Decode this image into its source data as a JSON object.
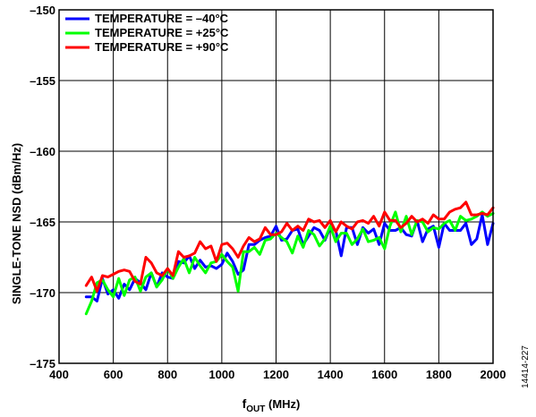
{
  "chart_data": {
    "type": "line",
    "xlabel_main": "f",
    "xlabel_sub": "OUT",
    "xlabel_unit": " (MHz)",
    "ylabel": "SINGLE-TONE NSD (dBm/Hz)",
    "xlim": [
      400,
      2000
    ],
    "ylim": [
      -175,
      -150
    ],
    "xticks": [
      400,
      600,
      800,
      1000,
      1200,
      1400,
      1600,
      1800,
      2000
    ],
    "yticks": [
      -150,
      -155,
      -160,
      -165,
      -170,
      -175
    ],
    "ytick_labels": [
      "–150",
      "–155",
      "–160",
      "–165",
      "–170",
      "–175"
    ],
    "grid": true,
    "legend_position": "top-left",
    "figure_id": "14414-227",
    "x": [
      500,
      520,
      540,
      560,
      580,
      600,
      620,
      640,
      660,
      680,
      700,
      720,
      740,
      760,
      780,
      800,
      820,
      840,
      860,
      880,
      900,
      920,
      940,
      960,
      980,
      1000,
      1020,
      1040,
      1060,
      1080,
      1100,
      1120,
      1140,
      1160,
      1180,
      1200,
      1220,
      1240,
      1260,
      1280,
      1300,
      1320,
      1340,
      1360,
      1380,
      1400,
      1420,
      1440,
      1460,
      1480,
      1500,
      1520,
      1540,
      1560,
      1580,
      1600,
      1620,
      1640,
      1660,
      1680,
      1700,
      1720,
      1740,
      1760,
      1780,
      1800,
      1820,
      1840,
      1860,
      1880,
      1900,
      1920,
      1940,
      1960,
      1980,
      2000
    ],
    "series": [
      {
        "name": "TEMPERATURE = –40°C",
        "color": "#0000ff",
        "values": [
          -170.3,
          -170.3,
          -170.6,
          -169.0,
          -170.1,
          -169.8,
          -170.4,
          -169.4,
          -169.8,
          -169.0,
          -169.3,
          -169.8,
          -168.6,
          -169.6,
          -168.6,
          -168.9,
          -169.0,
          -167.8,
          -167.9,
          -167.4,
          -168.3,
          -167.7,
          -168.2,
          -168.1,
          -168.3,
          -168.0,
          -167.2,
          -167.8,
          -168.7,
          -168.4,
          -166.6,
          -166.6,
          -166.3,
          -166.1,
          -166.0,
          -165.3,
          -166.3,
          -166.2,
          -165.6,
          -165.5,
          -166.6,
          -166.0,
          -165.4,
          -165.6,
          -166.3,
          -165.4,
          -165.6,
          -167.4,
          -165.4,
          -165.4,
          -166.6,
          -165.4,
          -165.8,
          -165.5,
          -166.6,
          -165.1,
          -165.6,
          -165.6,
          -165.4,
          -165.9,
          -166.0,
          -164.9,
          -166.4,
          -165.5,
          -165.3,
          -166.8,
          -165.1,
          -165.6,
          -165.6,
          -165.6,
          -165.1,
          -166.6,
          -166.2,
          -164.5,
          -166.6,
          -165.1
        ]
      },
      {
        "name": "TEMPERATURE = +25°C",
        "color": "#00ff00",
        "values": [
          -171.5,
          -170.6,
          -169.3,
          -169.1,
          -169.8,
          -170.3,
          -169.0,
          -170.2,
          -169.1,
          -168.9,
          -169.9,
          -168.9,
          -168.6,
          -169.6,
          -169.1,
          -168.3,
          -169.0,
          -168.2,
          -167.6,
          -168.6,
          -167.5,
          -168.1,
          -168.6,
          -167.9,
          -167.8,
          -167.3,
          -167.8,
          -168.2,
          -169.9,
          -167.1,
          -167.1,
          -166.8,
          -167.3,
          -166.3,
          -166.2,
          -165.8,
          -166.1,
          -166.4,
          -167.2,
          -166.0,
          -166.8,
          -165.6,
          -165.9,
          -166.7,
          -166.2,
          -165.3,
          -166.4,
          -165.8,
          -165.8,
          -166.6,
          -166.2,
          -165.5,
          -166.4,
          -166.3,
          -166.1,
          -166.9,
          -165.3,
          -164.3,
          -165.7,
          -164.6,
          -165.9,
          -164.9,
          -165.0,
          -165.7,
          -165.4,
          -165.5,
          -165.1,
          -164.9,
          -165.6,
          -164.6,
          -164.9,
          -164.8,
          -164.6,
          -164.3,
          -164.6,
          -164.4
        ]
      },
      {
        "name": "TEMPERATURE = +90°C",
        "color": "#ff0000",
        "values": [
          -169.5,
          -168.9,
          -169.9,
          -168.8,
          -168.9,
          -168.7,
          -168.5,
          -168.4,
          -168.5,
          -169.2,
          -169.4,
          -167.5,
          -167.9,
          -168.6,
          -168.8,
          -168.3,
          -168.8,
          -167.1,
          -167.5,
          -167.4,
          -167.2,
          -166.4,
          -166.9,
          -166.7,
          -167.8,
          -166.6,
          -166.5,
          -166.9,
          -167.5,
          -166.7,
          -166.1,
          -166.4,
          -166.2,
          -165.4,
          -165.9,
          -165.9,
          -165.7,
          -165.1,
          -165.6,
          -165.3,
          -165.6,
          -164.8,
          -165.0,
          -164.9,
          -165.4,
          -164.9,
          -165.7,
          -165.0,
          -165.3,
          -165.5,
          -165.0,
          -164.9,
          -165.1,
          -164.6,
          -165.3,
          -164.3,
          -164.9,
          -164.9,
          -165.4,
          -165.1,
          -164.6,
          -165.0,
          -164.8,
          -165.1,
          -164.5,
          -164.8,
          -164.8,
          -164.3,
          -164.1,
          -164.0,
          -163.6,
          -164.5,
          -164.5,
          -164.4,
          -164.5,
          -164.0
        ]
      }
    ]
  }
}
